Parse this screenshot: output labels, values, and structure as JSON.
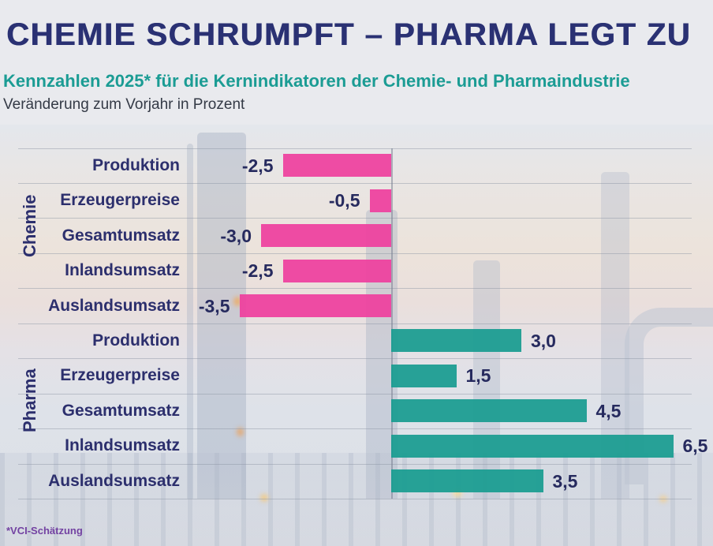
{
  "header": {
    "title": "CHEMIE SCHRUMPFT – PHARMA LEGT ZU",
    "subtitle": "Kennzahlen 2025* für die Kernindikatoren der Chemie- und Pharmaindustrie",
    "description": "Veränderung zum Vorjahr in Prozent"
  },
  "footer": {
    "note": "*VCI-Schätzung"
  },
  "colors": {
    "title_navy": "#2a3173",
    "subtitle_teal": "#1b9c94",
    "label_navy": "#2c2f6d",
    "chemie_pink": "#ee3f9e",
    "pharma_teal": "#199c90",
    "footnote_purple": "#7342a2"
  },
  "chart_data": {
    "type": "bar",
    "orientation": "horizontal",
    "unit": "percent change vs. previous year",
    "xlim": [
      -3.5,
      6.5
    ],
    "grid": true,
    "zero_baseline": true,
    "groups": [
      {
        "name": "Chemie",
        "color": "#ee3f9e",
        "rows": [
          {
            "label": "Produktion",
            "value": -2.5,
            "display": "-2,5"
          },
          {
            "label": "Erzeugerpreise",
            "value": -0.5,
            "display": "-0,5"
          },
          {
            "label": "Gesamtumsatz",
            "value": -3.0,
            "display": "-3,0"
          },
          {
            "label": "Inlandsumsatz",
            "value": -2.5,
            "display": "-2,5"
          },
          {
            "label": "Auslandsumsatz",
            "value": -3.5,
            "display": "-3,5"
          }
        ]
      },
      {
        "name": "Pharma",
        "color": "#199c90",
        "rows": [
          {
            "label": "Produktion",
            "value": 3.0,
            "display": "3,0"
          },
          {
            "label": "Erzeugerpreise",
            "value": 1.5,
            "display": "1,5"
          },
          {
            "label": "Gesamtumsatz",
            "value": 4.5,
            "display": "4,5"
          },
          {
            "label": "Inlandsumsatz",
            "value": 6.5,
            "display": "6,5"
          },
          {
            "label": "Auslandsumsatz",
            "value": 3.5,
            "display": "3,5"
          }
        ]
      }
    ]
  }
}
